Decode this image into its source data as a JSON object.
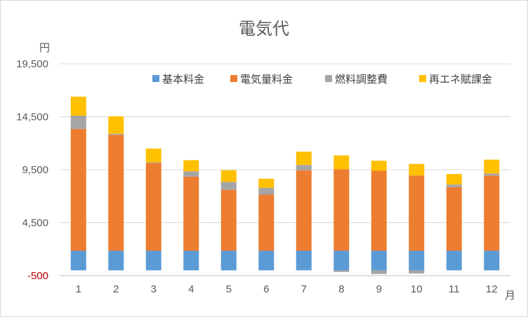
{
  "chart_data": {
    "type": "bar",
    "stacked": true,
    "title": "電気代",
    "ylabel": "円",
    "xlabel": "月",
    "categories": [
      "1",
      "2",
      "3",
      "4",
      "5",
      "6",
      "7",
      "8",
      "9",
      "10",
      "11",
      "12"
    ],
    "yticks": [
      -500,
      4500,
      9500,
      14500,
      19500
    ],
    "ytick_labels": [
      "-500",
      "4,500",
      "9,500",
      "14,500",
      "19,500"
    ],
    "ylim": [
      -500,
      19500
    ],
    "grid": true,
    "legend_position": "top-right",
    "series": [
      {
        "name": "基本料金",
        "color": "#5b9bd5",
        "values": [
          1850,
          1850,
          1850,
          1850,
          1850,
          1850,
          1850,
          1850,
          1850,
          1850,
          1850,
          1850
        ]
      },
      {
        "name": "電気量料金",
        "color": "#ed7d31",
        "values": [
          11500,
          10950,
          8300,
          7000,
          5750,
          5300,
          7600,
          7700,
          7550,
          7100,
          6000,
          7100
        ]
      },
      {
        "name": "燃料調整費",
        "color": "#a5a5a5",
        "values": [
          1250,
          100,
          50,
          500,
          750,
          650,
          500,
          -150,
          -350,
          -300,
          250,
          200
        ]
      },
      {
        "name": "再エネ賦課金",
        "color": "#ffc000",
        "values": [
          1800,
          1650,
          1300,
          1050,
          1100,
          850,
          1250,
          1300,
          950,
          1100,
          1000,
          1300
        ]
      }
    ]
  }
}
